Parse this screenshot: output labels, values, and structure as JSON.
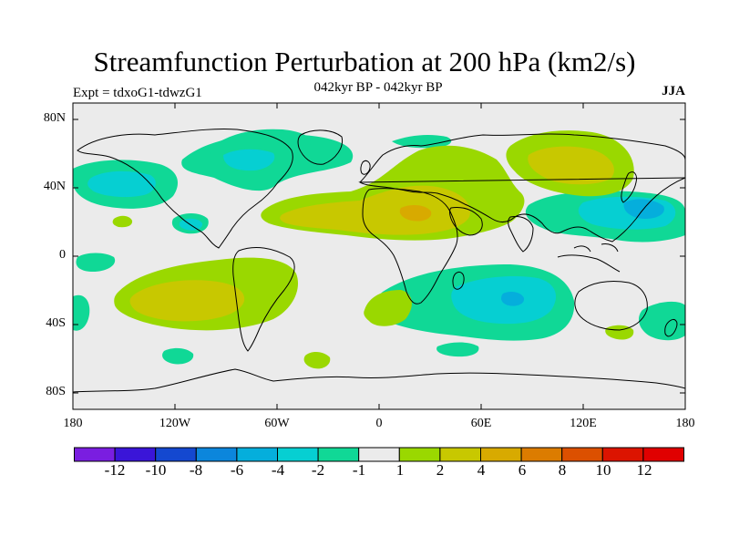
{
  "title": "Streamfunction Perturbation at 200 hPa (km2/s)",
  "subtitle": "042kyr BP - 042kyr BP",
  "expt_label": "Expt = tdxoG1-tdwzG1",
  "season": "JJA",
  "axes": {
    "lat_ticks": [
      "80N",
      "40N",
      "0",
      "40S",
      "80S"
    ],
    "lon_ticks": [
      "180",
      "120W",
      "60W",
      "0",
      "60E",
      "120E",
      "180"
    ]
  },
  "colorbar": {
    "labels": [
      "-12",
      "-10",
      "-8",
      "-6",
      "-4",
      "-2",
      "-1",
      "1",
      "2",
      "4",
      "6",
      "8",
      "10",
      "12"
    ],
    "colors": [
      "#7a1ee0",
      "#3a15d8",
      "#1448d0",
      "#0c86dc",
      "#05aedc",
      "#06cfd2",
      "#10d896",
      "#ebebeb",
      "#9ad800",
      "#c8c800",
      "#d8aa00",
      "#dc7c00",
      "#dc5000",
      "#dc1400",
      "#e00000"
    ]
  },
  "map_background": "#ebebeb"
}
